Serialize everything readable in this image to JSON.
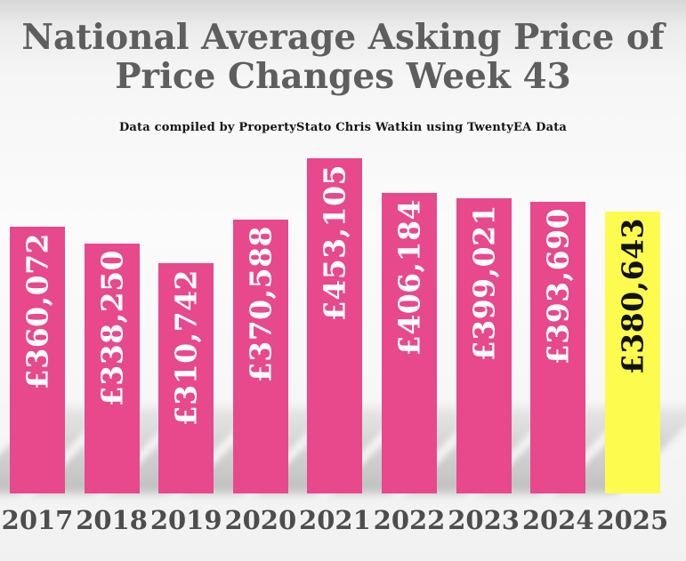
{
  "title": {
    "line1": "National Average Asking Price of",
    "line2": "Price Changes Week 43"
  },
  "subtitle": "Data compiled by PropertyStato Chris Watkin using TwentyEA Data",
  "chart_data": {
    "type": "bar",
    "title": "National Average Asking Price of Price Changes Week 43",
    "xlabel": "",
    "ylabel": "",
    "categories": [
      "2017",
      "2018",
      "2019",
      "2020",
      "2021",
      "2022",
      "2023",
      "2024",
      "2025"
    ],
    "values": [
      360072,
      338250,
      310742,
      370588,
      453105,
      406184,
      399021,
      393690,
      380643
    ],
    "value_labels": [
      "£360,072",
      "£338,250",
      "£310,742",
      "£370,588",
      "£453,105",
      "£406,184",
      "£399,021",
      "£393,690",
      "£380,643"
    ],
    "ylim": [
      0,
      453105
    ],
    "grid": false,
    "legend": false,
    "bar_color": "#E7498C",
    "highlight_index": 8,
    "highlight_color": "#FDFB4E",
    "value_label_color": "#FFFFFF",
    "highlight_value_label_color": "#111111",
    "axis_label_color": "#4d4d4d"
  }
}
